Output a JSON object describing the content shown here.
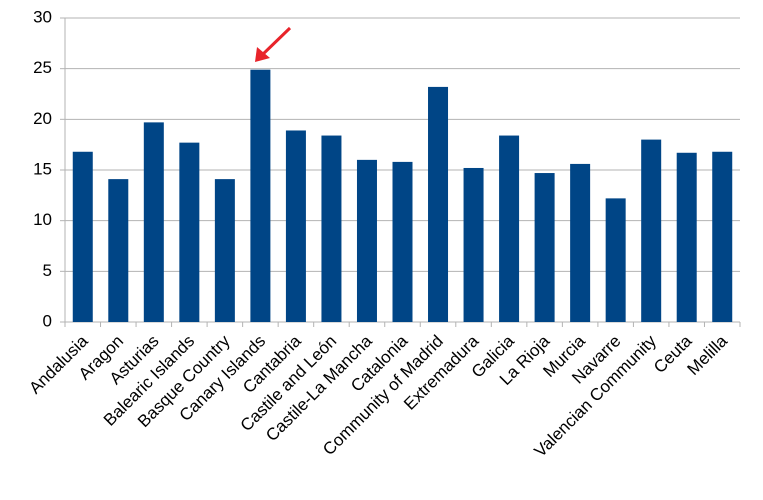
{
  "chart_data": {
    "type": "bar",
    "categories": [
      "Andalusia",
      "Aragon",
      "Asturias",
      "Balearic Islands",
      "Basque Country",
      "Canary Islands",
      "Cantabria",
      "Castile and León",
      "Castile-La Mancha",
      "Catalonia",
      "Community of Madrid",
      "Extremadura",
      "Galicia",
      "La Rioja",
      "Murcia",
      "Navarre",
      "Valencian Community",
      "Ceuta",
      "Melilla"
    ],
    "values": [
      16.8,
      14.1,
      19.7,
      17.7,
      14.1,
      24.9,
      18.9,
      18.4,
      16.0,
      15.8,
      23.2,
      15.2,
      18.4,
      14.7,
      15.6,
      12.2,
      18.0,
      16.7,
      16.8
    ],
    "color": "#004586",
    "ylim": [
      0,
      30
    ],
    "yticks": [
      0,
      5,
      10,
      15,
      20,
      25,
      30
    ],
    "grid": true
  }
}
